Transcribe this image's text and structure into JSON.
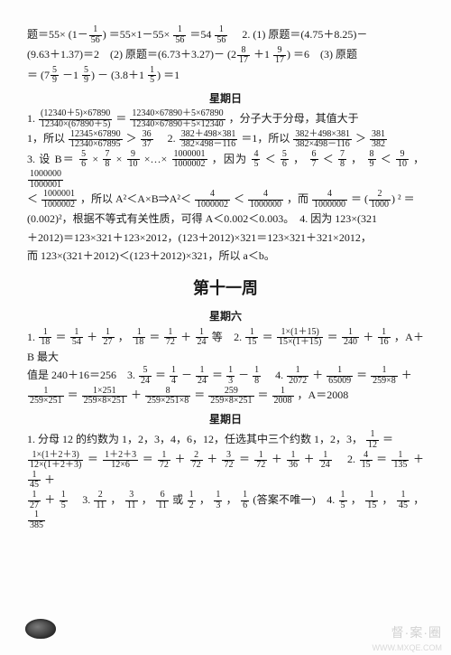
{
  "intro": {
    "p1_a": "题＝55×",
    "p1_frac1_n": "1",
    "p1_frac1_d": "56",
    "p1_b": "＝55×1－55×",
    "p1_frac2_n": "1",
    "p1_frac2_d": "56",
    "p1_c": "＝54",
    "p1_frac3_n": "1",
    "p1_frac3_d": "56",
    "p1_d": "　2. (1) 原题＝(4.75＋8.25)－",
    "p2_a": "(9.63＋1.37)＝2　(2) 原题＝(6.73＋3.27)－",
    "p2_frac1_n": "8",
    "p2_frac1_d": "17",
    "p2_b": "＋1",
    "p2_frac2_n": "9",
    "p2_frac2_d": "17",
    "p2_c": "＝6　(3) 原题",
    "p3_a": "＝",
    "p3_frac1_n": "5",
    "p3_frac1_d": "9",
    "p3_b": "－1",
    "p3_frac2_n": "5",
    "p3_frac2_d": "9",
    "p3_c": "－",
    "p3_d": "3.8＋1",
    "p3_frac3_n": "1",
    "p3_frac3_d": "5",
    "p3_e": "＝1"
  },
  "sun1_title": "星期日",
  "sun1": {
    "p1_a": "1. ",
    "p1_fA_n": "(12340＋5)×67890",
    "p1_fA_d": "12340×(67890＋5)",
    "p1_b": "＝",
    "p1_fB_n": "12340×67890＋5×67890",
    "p1_fB_d": "12340×67890＋5×12340",
    "p1_c": "，分子大于分母，其值大于",
    "p2_a": "1，所以",
    "p2_fA_n": "12345×67890",
    "p2_fA_d": "12340×67895",
    "p2_b": "＞",
    "p2_fB_n": "36",
    "p2_fB_d": "37",
    "p2_c": "　2. ",
    "p2_fC_n": "382＋498×381",
    "p2_fC_d": "382×498－116",
    "p2_d": "＝1，所以",
    "p2_fD_n": "382＋498×381",
    "p2_fD_d": "382×498－116",
    "p2_e": "＞",
    "p2_fE_n": "381",
    "p2_fE_d": "382",
    "p3_a": "3. 设 B＝",
    "p3_f1_n": "5",
    "p3_f1_d": "6",
    "p3_b": "×",
    "p3_f2_n": "7",
    "p3_f2_d": "8",
    "p3_c": "×",
    "p3_f3_n": "9",
    "p3_f3_d": "10",
    "p3_d": "×…×",
    "p3_f4_n": "1000001",
    "p3_f4_d": "1000002",
    "p3_e": "，因为",
    "p3_f5_n": "4",
    "p3_f5_d": "5",
    "p3_f": "＜",
    "p3_f6_n": "5",
    "p3_f6_d": "6",
    "p3_g": "，",
    "p3_f7_n": "6",
    "p3_f7_d": "7",
    "p3_h": "＜",
    "p3_f8_n": "7",
    "p3_f8_d": "8",
    "p3_i": "，",
    "p3_f9_n": "8",
    "p3_f9_d": "9",
    "p3_j": "＜",
    "p3_f10_n": "9",
    "p3_f10_d": "10",
    "p3_k": "，",
    "p3_f11_n": "1000000",
    "p3_f11_d": "1000001",
    "p4_a": "＜",
    "p4_f1_n": "1000001",
    "p4_f1_d": "1000002",
    "p4_b": "，所以 A²＜A×B⇒A²＜",
    "p4_f2_n": "4",
    "p4_f2_d": "1000002",
    "p4_c": "＜",
    "p4_f3_n": "4",
    "p4_f3_d": "1000000",
    "p4_d": "，而",
    "p4_f4_n": "4",
    "p4_f4_d": "1000000",
    "p4_e": "＝",
    "p4_f5_n": "2",
    "p4_f5_d": "1000",
    "p4_f": "² ＝",
    "p5_a": "(0.002)²，根据不等式有关性质，可得 A＜0.002＜0.003。　4. 因为 123×(321",
    "p6_a": "＋2012)＝123×321＋123×2012，(123＋2012)×321＝123×321＋321×2012，",
    "p7_a": "而 123×(321＋2012)＜(123＋2012)×321，所以 a＜b。"
  },
  "week11_title": "第十一周",
  "sat_title": "星期六",
  "sat": {
    "p1_a": "1. ",
    "p1_f1_n": "1",
    "p1_f1_d": "18",
    "p1_b": "＝",
    "p1_f2_n": "1",
    "p1_f2_d": "54",
    "p1_c": "＋",
    "p1_f3_n": "1",
    "p1_f3_d": "27",
    "p1_d": "，",
    "p1_f4_n": "1",
    "p1_f4_d": "18",
    "p1_e": "＝",
    "p1_f5_n": "1",
    "p1_f5_d": "72",
    "p1_f": "＋",
    "p1_f6_n": "1",
    "p1_f6_d": "24",
    "p1_g": "等　2. ",
    "p1_f7_n": "1",
    "p1_f7_d": "15",
    "p1_h": "＝",
    "p1_f8_n": "1×(1＋15)",
    "p1_f8_d": "15×(1＋15)",
    "p1_i": "＝",
    "p1_f9_n": "1",
    "p1_f9_d": "240",
    "p1_j": "＋",
    "p1_f10_n": "1",
    "p1_f10_d": "16",
    "p1_k": "，A＋B 最大",
    "p2_a": "值是 240＋16＝256　3. ",
    "p2_f1_n": "5",
    "p2_f1_d": "24",
    "p2_b": "＝",
    "p2_f2_n": "1",
    "p2_f2_d": "4",
    "p2_c": "－",
    "p2_f3_n": "1",
    "p2_f3_d": "24",
    "p2_d": "＝",
    "p2_f4_n": "1",
    "p2_f4_d": "3",
    "p2_e": "－",
    "p2_f5_n": "1",
    "p2_f5_d": "8",
    "p2_f": "　4. ",
    "p2_f6_n": "1",
    "p2_f6_d": "2072",
    "p2_g": "＋",
    "p2_f7_n": "1",
    "p2_f7_d": "65009",
    "p2_h": "＝",
    "p2_f8_n": "1",
    "p2_f8_d": "259×8",
    "p2_i": "＋",
    "p3_f1_n": "1",
    "p3_f1_d": "259×251",
    "p3_a": "＝",
    "p3_f2_n": "1×251",
    "p3_f2_d": "259×8×251",
    "p3_b": "＋",
    "p3_f3_n": "8",
    "p3_f3_d": "259×251×8",
    "p3_c": "＝",
    "p3_f4_n": "259",
    "p3_f4_d": "259×8×251",
    "p3_d": "＝",
    "p3_f5_n": "1",
    "p3_f5_d": "2008",
    "p3_e": "，A＝2008"
  },
  "sun2_title": "星期日",
  "sun2": {
    "p1_a": "1. 分母 12 的约数为 1，2，3，4，6，12，任选其中三个约数 1，2，3，",
    "p1_f1_n": "1",
    "p1_f1_d": "12",
    "p1_b": "＝",
    "p2_f1_n": "1×(1＋2＋3)",
    "p2_f1_d": "12×(1＋2＋3)",
    "p2_a": "＝",
    "p2_f2_n": "1＋2＋3",
    "p2_f2_d": "12×6",
    "p2_b": "＝",
    "p2_f3_n": "1",
    "p2_f3_d": "72",
    "p2_c": "＋",
    "p2_f4_n": "2",
    "p2_f4_d": "72",
    "p2_d": "＋",
    "p2_f5_n": "3",
    "p2_f5_d": "72",
    "p2_e": "＝",
    "p2_f6_n": "1",
    "p2_f6_d": "72",
    "p2_f": "＋",
    "p2_f7_n": "1",
    "p2_f7_d": "36",
    "p2_g": "＋",
    "p2_f8_n": "1",
    "p2_f8_d": "24",
    "p2_h": "　2. ",
    "p2_f9_n": "4",
    "p2_f9_d": "15",
    "p2_i": "＝",
    "p2_f10_n": "1",
    "p2_f10_d": "135",
    "p2_j": "＋",
    "p2_f11_n": "1",
    "p2_f11_d": "45",
    "p2_k": "＋",
    "p3_f1_n": "1",
    "p3_f1_d": "27",
    "p3_a": "＋",
    "p3_f2_n": "1",
    "p3_f2_d": "5",
    "p3_b": "　3. ",
    "p3_f3_n": "2",
    "p3_f3_d": "11",
    "p3_c": "，",
    "p3_f4_n": "3",
    "p3_f4_d": "11",
    "p3_d": "，",
    "p3_f5_n": "6",
    "p3_f5_d": "11",
    "p3_e": "或",
    "p3_f6_n": "1",
    "p3_f6_d": "2",
    "p3_f": "，",
    "p3_f7_n": "1",
    "p3_f7_d": "3",
    "p3_g": "，",
    "p3_f8_n": "1",
    "p3_f8_d": "6",
    "p3_h": "(答案不唯一)　4. ",
    "p3_f9_n": "1",
    "p3_f9_d": "5",
    "p3_i": "，",
    "p3_f10_n": "1",
    "p3_f10_d": "15",
    "p3_j": "，",
    "p3_f11_n": "1",
    "p3_f11_d": "45",
    "p3_k": "，",
    "p3_f12_n": "1",
    "p3_f12_d": "385"
  },
  "watermark": "督·案·圈",
  "wm_sub": "WWW.MXQE.COM"
}
